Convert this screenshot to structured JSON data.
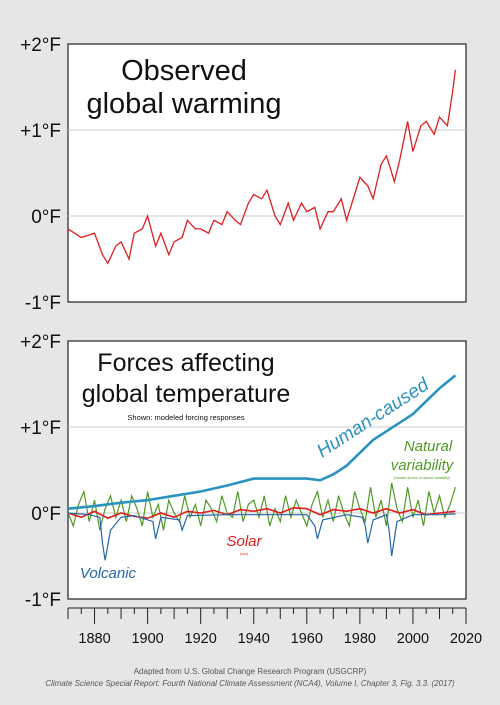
{
  "colors": {
    "observed": "#dd2020",
    "human": "#2a93bf",
    "natural": "#4f9a26",
    "solar": "#e01b1b",
    "volcanic": "#2566a8"
  },
  "chart_data": [
    {
      "type": "line",
      "title": "Observed global warming",
      "title_lines": [
        "Observed",
        "global warming"
      ],
      "ylim": [
        -1,
        2
      ],
      "xlim": [
        1870,
        2020
      ],
      "ytick_labels": [
        "+2°F",
        "+1°F",
        "0°F",
        "-1°F"
      ],
      "grid": true,
      "series": [
        {
          "name": "",
          "x": [
            1870,
            1875,
            1880,
            1883,
            1885,
            1888,
            1890,
            1893,
            1895,
            1898,
            1900,
            1903,
            1905,
            1908,
            1910,
            1913,
            1915,
            1918,
            1920,
            1923,
            1925,
            1928,
            1930,
            1933,
            1935,
            1938,
            1940,
            1943,
            1945,
            1948,
            1950,
            1953,
            1955,
            1958,
            1960,
            1963,
            1965,
            1968,
            1970,
            1973,
            1975,
            1978,
            1980,
            1983,
            1985,
            1988,
            1990,
            1993,
            1995,
            1998,
            2000,
            2003,
            2005,
            2008,
            2010,
            2013,
            2015,
            2016
          ],
          "y": [
            -0.15,
            -0.25,
            -0.2,
            -0.45,
            -0.55,
            -0.35,
            -0.3,
            -0.5,
            -0.2,
            -0.15,
            0.0,
            -0.35,
            -0.2,
            -0.45,
            -0.3,
            -0.25,
            -0.05,
            -0.15,
            -0.15,
            -0.2,
            -0.05,
            -0.1,
            0.05,
            -0.05,
            -0.1,
            0.15,
            0.25,
            0.2,
            0.3,
            0.0,
            -0.1,
            0.15,
            -0.05,
            0.15,
            0.05,
            0.1,
            -0.15,
            0.05,
            0.05,
            0.2,
            -0.05,
            0.25,
            0.45,
            0.35,
            0.2,
            0.6,
            0.7,
            0.4,
            0.65,
            1.1,
            0.75,
            1.05,
            1.1,
            0.95,
            1.15,
            1.05,
            1.45,
            1.7
          ]
        }
      ]
    },
    {
      "type": "line",
      "title": "Forces affecting global temperature",
      "title_lines": [
        "Forces affecting",
        "global temperature"
      ],
      "subtitle": "Shown: modeled forcing responses",
      "ylim": [
        -1,
        2
      ],
      "xlim": [
        1870,
        2020
      ],
      "ytick_labels": [
        "+2°F",
        "+1°F",
        "0°F",
        "-1°F"
      ],
      "xtick_labels": [
        "1880",
        "1900",
        "1920",
        "1940",
        "1960",
        "1980",
        "2000",
        "2020"
      ],
      "grid": true,
      "series": [
        {
          "name": "Human-caused",
          "x": [
            1870,
            1880,
            1890,
            1900,
            1910,
            1920,
            1930,
            1940,
            1950,
            1960,
            1965,
            1970,
            1975,
            1980,
            1985,
            1990,
            1995,
            2000,
            2005,
            2010,
            2016
          ],
          "y": [
            0.05,
            0.08,
            0.12,
            0.15,
            0.2,
            0.25,
            0.32,
            0.4,
            0.4,
            0.4,
            0.38,
            0.45,
            0.55,
            0.7,
            0.85,
            0.95,
            1.05,
            1.15,
            1.3,
            1.45,
            1.6
          ]
        },
        {
          "name": "Natural variability",
          "x": [
            1870,
            1872,
            1874,
            1876,
            1878,
            1880,
            1882,
            1884,
            1886,
            1888,
            1890,
            1892,
            1894,
            1896,
            1898,
            1900,
            1902,
            1904,
            1906,
            1908,
            1910,
            1912,
            1914,
            1916,
            1918,
            1920,
            1922,
            1924,
            1926,
            1928,
            1930,
            1932,
            1934,
            1936,
            1938,
            1940,
            1942,
            1944,
            1946,
            1948,
            1950,
            1952,
            1954,
            1956,
            1958,
            1960,
            1962,
            1964,
            1966,
            1968,
            1970,
            1972,
            1974,
            1976,
            1978,
            1980,
            1982,
            1984,
            1986,
            1988,
            1990,
            1992,
            1994,
            1996,
            1998,
            2000,
            2002,
            2004,
            2006,
            2008,
            2010,
            2012,
            2014,
            2016
          ],
          "y": [
            0.0,
            -0.15,
            0.1,
            0.25,
            -0.1,
            0.15,
            -0.2,
            0.05,
            0.2,
            -0.05,
            0.15,
            -0.1,
            0.2,
            0.05,
            -0.15,
            0.25,
            -0.05,
            0.1,
            -0.2,
            0.15,
            0.0,
            -0.1,
            0.2,
            -0.05,
            0.1,
            -0.15,
            0.15,
            0.05,
            -0.1,
            0.2,
            0.0,
            -0.05,
            0.25,
            -0.1,
            0.1,
            0.15,
            -0.05,
            0.2,
            -0.15,
            0.05,
            -0.1,
            0.2,
            -0.05,
            0.15,
            0.0,
            -0.15,
            0.1,
            0.25,
            -0.05,
            0.15,
            -0.1,
            0.2,
            0.0,
            -0.15,
            0.25,
            0.05,
            -0.1,
            0.3,
            -0.05,
            0.15,
            -0.15,
            0.35,
            0.05,
            -0.1,
            0.3,
            -0.05,
            0.15,
            -0.15,
            0.25,
            0.0,
            0.2,
            -0.05,
            0.1,
            0.3
          ]
        },
        {
          "name": "Solar",
          "x": [
            1870,
            1875,
            1880,
            1885,
            1890,
            1895,
            1900,
            1905,
            1910,
            1915,
            1920,
            1925,
            1930,
            1935,
            1940,
            1945,
            1950,
            1955,
            1960,
            1965,
            1970,
            1975,
            1980,
            1985,
            1990,
            1995,
            2000,
            2005,
            2010,
            2016
          ],
          "y": [
            0.0,
            -0.05,
            0.02,
            -0.06,
            0.0,
            -0.04,
            -0.06,
            0.0,
            -0.05,
            0.02,
            0.0,
            0.03,
            -0.02,
            0.04,
            0.02,
            0.05,
            0.0,
            0.06,
            0.05,
            -0.02,
            0.04,
            0.02,
            0.05,
            0.0,
            0.05,
            0.0,
            0.04,
            -0.02,
            0.0,
            0.02
          ]
        },
        {
          "name": "Volcanic",
          "x": [
            1870,
            1878,
            1882,
            1883,
            1884,
            1886,
            1890,
            1895,
            1902,
            1903,
            1905,
            1912,
            1913,
            1915,
            1930,
            1940,
            1960,
            1963,
            1964,
            1966,
            1975,
            1981,
            1982,
            1983,
            1985,
            1990,
            1991,
            1992,
            1994,
            2000,
            2010,
            2016
          ],
          "y": [
            0.0,
            -0.02,
            -0.05,
            -0.35,
            -0.55,
            -0.2,
            -0.05,
            -0.03,
            -0.1,
            -0.3,
            -0.05,
            -0.08,
            -0.2,
            -0.03,
            -0.02,
            -0.02,
            -0.02,
            -0.15,
            -0.3,
            -0.08,
            -0.02,
            -0.05,
            -0.15,
            -0.35,
            -0.08,
            -0.02,
            -0.2,
            -0.5,
            -0.1,
            -0.02,
            -0.02,
            -0.01
          ]
        }
      ],
      "annotations": [
        {
          "text": "(climate drivers of natural variability)",
          "series": "Natural variability"
        },
        {
          "text": "(sun)",
          "series": "Solar"
        }
      ]
    }
  ],
  "credit": {
    "line1": "Adapted from U.S. Global Change Research Program (USGCRP)",
    "line2": "Climate Science Special Report: Fourth National Climate Assessment (NCA4), Volume I, Chapter 3, Fig. 3.3. (2017)"
  }
}
